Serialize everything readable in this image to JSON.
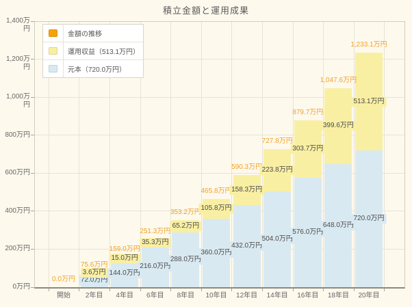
{
  "title": "積立金額と運用成果",
  "legend": {
    "items": [
      {
        "label": "金額の推移",
        "color": "#f5a30a",
        "key": "total"
      },
      {
        "label": "運用収益（513.1万円）",
        "color": "#f9efa3",
        "key": "profit"
      },
      {
        "label": "元本（720.0万円）",
        "color": "#d9e9f1",
        "key": "principal"
      }
    ]
  },
  "chart_data": {
    "type": "bar",
    "stacked": true,
    "title": "積立金額と運用成果",
    "categories": [
      "開始",
      "2年目",
      "4年目",
      "6年目",
      "8年目",
      "10年目",
      "12年目",
      "14年目",
      "16年目",
      "18年目",
      "20年目"
    ],
    "series": [
      {
        "name": "元本",
        "color": "#d9e9f1",
        "values": [
          0,
          72.0,
          144.0,
          216.0,
          288.0,
          360.0,
          432.0,
          504.0,
          576.0,
          648.0,
          720.0
        ],
        "labels": [
          "",
          "72.0万円",
          "144.0万円",
          "216.0万円",
          "288.0万円",
          "360.0万円",
          "432.0万円",
          "504.0万円",
          "576.0万円",
          "648.0万円",
          "720.0万円"
        ]
      },
      {
        "name": "運用収益",
        "color": "#f9efa3",
        "values": [
          0,
          3.6,
          15.0,
          35.3,
          65.2,
          105.8,
          158.3,
          223.8,
          303.7,
          399.6,
          513.1
        ],
        "labels": [
          "",
          "3.6万円",
          "15.0万円",
          "35.3万円",
          "65.2万円",
          "105.8万円",
          "158.3万円",
          "223.8万円",
          "303.7万円",
          "399.6万円",
          "513.1万円"
        ]
      }
    ],
    "totals": {
      "name": "金額の推移",
      "color": "#f2a226",
      "values": [
        0,
        75.6,
        159.0,
        251.3,
        353.2,
        465.8,
        590.3,
        727.8,
        879.7,
        1047.6,
        1233.1
      ],
      "labels": [
        "0.0万円",
        "75.6万円",
        "159.0万円",
        "251.3万円",
        "353.2万円",
        "465.8万円",
        "590.3万円",
        "727.8万円",
        "879.7万円",
        "1,047.6万円",
        "1,233.1万円"
      ]
    },
    "ylim": [
      0,
      1400
    ],
    "ytick_step": 200,
    "ytick_labels": [
      "0万円",
      "200万円",
      "400万円",
      "600万円",
      "800万円",
      "1,000万円",
      "1,200万円",
      "1,400万円"
    ],
    "grid": true,
    "legend_position": "top-left"
  },
  "colors": {
    "background": "#fdf9ed",
    "grid": "#e7e3d5",
    "axis_line": "#8a8a80",
    "tick_text": "#666666",
    "segment_label_text": "#4b4b4b"
  }
}
